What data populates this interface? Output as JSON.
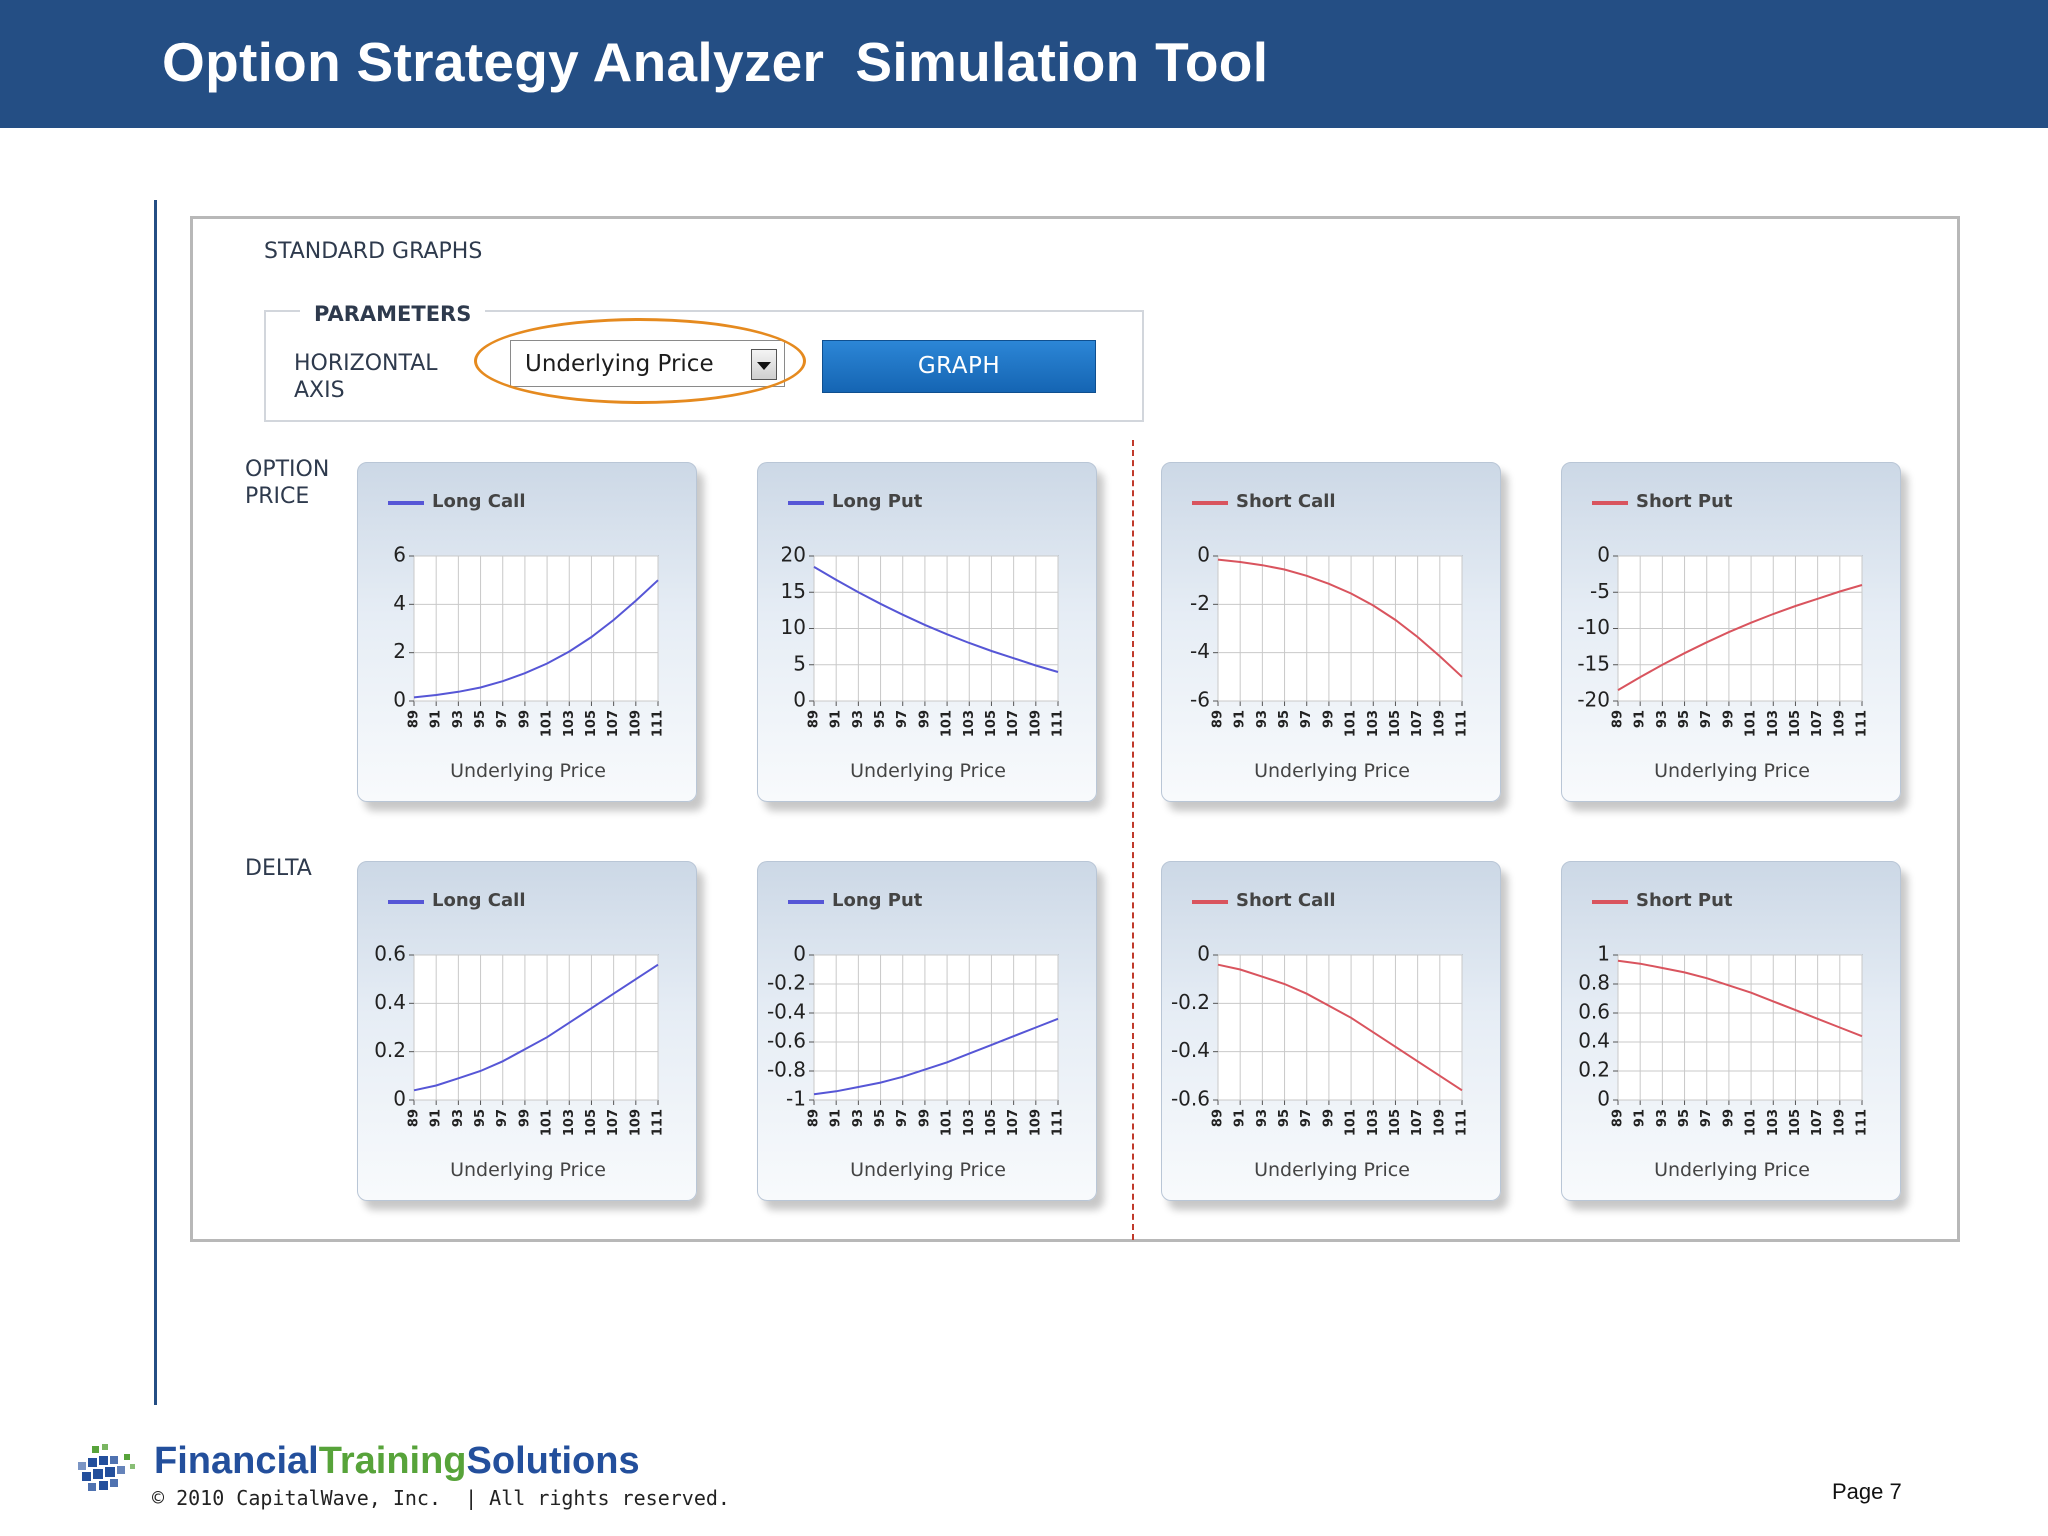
{
  "slide": {
    "title": "Option Strategy Analyzer  Simulation Tool",
    "page": "Page 7"
  },
  "app": {
    "section_title": "STANDARD GRAPHS",
    "parameters_legend": "PARAMETERS",
    "horizontal_axis_label": "HORIZONTAL\nAXIS",
    "horizontal_axis_value": "Underlying Price",
    "graph_button": "GRAPH",
    "row_labels": [
      "OPTION\nPRICE",
      "DELTA"
    ]
  },
  "footer": {
    "brand_financial": "Financial",
    "brand_training": "Training",
    "brand_solutions": "Solutions",
    "copyright": "© 2010 CapitalWave, Inc.  | All rights reserved."
  },
  "colors": {
    "banner": "#244e84",
    "long": "#5656d6",
    "short": "#d9545e",
    "brand_blue": "#234f9c",
    "brand_green": "#57a33a"
  },
  "chart_data": [
    {
      "type": "line",
      "row": "OPTION PRICE",
      "legend": "Long Call",
      "color": "long",
      "xlabel": "Underlying Price",
      "x": [
        89,
        91,
        93,
        95,
        97,
        99,
        101,
        103,
        105,
        107,
        109,
        111
      ],
      "xticks": [
        89,
        91,
        93,
        95,
        97,
        99,
        101,
        103,
        105,
        107,
        109,
        111
      ],
      "ylim": [
        0,
        6
      ],
      "yticks": [
        0,
        2,
        4,
        6
      ],
      "ytick_labels": [
        "0",
        "2",
        "4",
        "6"
      ],
      "y": [
        0.15,
        0.25,
        0.38,
        0.56,
        0.82,
        1.15,
        1.55,
        2.05,
        2.65,
        3.35,
        4.15,
        5.0
      ]
    },
    {
      "type": "line",
      "row": "OPTION PRICE",
      "legend": "Long Put",
      "color": "long",
      "xlabel": "Underlying Price",
      "x": [
        89,
        91,
        93,
        95,
        97,
        99,
        101,
        103,
        105,
        107,
        109,
        111
      ],
      "xticks": [
        89,
        91,
        93,
        95,
        97,
        99,
        101,
        103,
        105,
        107,
        109,
        111
      ],
      "ylim": [
        0,
        20
      ],
      "yticks": [
        0,
        5,
        10,
        15,
        20
      ],
      "ytick_labels": [
        "0",
        "5",
        "10",
        "15",
        "20"
      ],
      "y": [
        18.5,
        16.7,
        15.0,
        13.4,
        11.9,
        10.5,
        9.2,
        8.0,
        6.9,
        5.9,
        4.9,
        4.0
      ]
    },
    {
      "type": "line",
      "row": "OPTION PRICE",
      "legend": "Short Call",
      "color": "short",
      "xlabel": "Underlying Price",
      "x": [
        89,
        91,
        93,
        95,
        97,
        99,
        101,
        103,
        105,
        107,
        109,
        111
      ],
      "xticks": [
        89,
        91,
        93,
        95,
        97,
        99,
        101,
        103,
        105,
        107,
        109,
        111
      ],
      "ylim": [
        -6,
        0
      ],
      "yticks": [
        -6,
        -4,
        -2,
        0
      ],
      "ytick_labels": [
        "-6",
        "-4",
        "-2",
        "0"
      ],
      "y": [
        -0.15,
        -0.25,
        -0.38,
        -0.56,
        -0.82,
        -1.15,
        -1.55,
        -2.05,
        -2.65,
        -3.35,
        -4.15,
        -5.0
      ]
    },
    {
      "type": "line",
      "row": "OPTION PRICE",
      "legend": "Short Put",
      "color": "short",
      "xlabel": "Underlying Price",
      "x": [
        89,
        91,
        93,
        95,
        97,
        99,
        101,
        103,
        105,
        107,
        109,
        111
      ],
      "xticks": [
        89,
        91,
        93,
        95,
        97,
        99,
        101,
        103,
        105,
        107,
        109,
        111
      ],
      "ylim": [
        -20,
        0
      ],
      "yticks": [
        -20,
        -15,
        -10,
        -5,
        0
      ],
      "ytick_labels": [
        "-20",
        "-15",
        "-10",
        "-5",
        "0"
      ],
      "y": [
        -18.5,
        -16.7,
        -15.0,
        -13.4,
        -11.9,
        -10.5,
        -9.2,
        -8.0,
        -6.9,
        -5.9,
        -4.9,
        -4.0
      ]
    },
    {
      "type": "line",
      "row": "DELTA",
      "legend": "Long Call",
      "color": "long",
      "xlabel": "Underlying Price",
      "x": [
        89,
        91,
        93,
        95,
        97,
        99,
        101,
        103,
        105,
        107,
        109,
        111
      ],
      "xticks": [
        89,
        91,
        93,
        95,
        97,
        99,
        101,
        103,
        105,
        107,
        109,
        111
      ],
      "ylim": [
        0,
        0.6
      ],
      "yticks": [
        0,
        0.2,
        0.4,
        0.6
      ],
      "ytick_labels": [
        "0",
        "0.2",
        "0.4",
        "0.6"
      ],
      "y": [
        0.04,
        0.06,
        0.09,
        0.12,
        0.16,
        0.21,
        0.26,
        0.32,
        0.38,
        0.44,
        0.5,
        0.56
      ]
    },
    {
      "type": "line",
      "row": "DELTA",
      "legend": "Long Put",
      "color": "long",
      "xlabel": "Underlying Price",
      "x": [
        89,
        91,
        93,
        95,
        97,
        99,
        101,
        103,
        105,
        107,
        109,
        111
      ],
      "xticks": [
        89,
        91,
        93,
        95,
        97,
        99,
        101,
        103,
        105,
        107,
        109,
        111
      ],
      "ylim": [
        -1,
        0
      ],
      "yticks": [
        -1,
        -0.8,
        -0.6,
        -0.4,
        -0.2,
        0
      ],
      "ytick_labels": [
        "-1",
        "-0.8",
        "-0.6",
        "-0.4",
        "-0.2",
        "0"
      ],
      "y": [
        -0.96,
        -0.94,
        -0.91,
        -0.88,
        -0.84,
        -0.79,
        -0.74,
        -0.68,
        -0.62,
        -0.56,
        -0.5,
        -0.44
      ]
    },
    {
      "type": "line",
      "row": "DELTA",
      "legend": "Short Call",
      "color": "short",
      "xlabel": "Underlying Price",
      "x": [
        89,
        91,
        93,
        95,
        97,
        99,
        101,
        103,
        105,
        107,
        109,
        111
      ],
      "xticks": [
        89,
        91,
        93,
        95,
        97,
        99,
        101,
        103,
        105,
        107,
        109,
        111
      ],
      "ylim": [
        -0.6,
        0
      ],
      "yticks": [
        -0.6,
        -0.4,
        -0.2,
        0
      ],
      "ytick_labels": [
        "-0.6",
        "-0.4",
        "-0.2",
        "0"
      ],
      "y": [
        -0.04,
        -0.06,
        -0.09,
        -0.12,
        -0.16,
        -0.21,
        -0.26,
        -0.32,
        -0.38,
        -0.44,
        -0.5,
        -0.56
      ]
    },
    {
      "type": "line",
      "row": "DELTA",
      "legend": "Short Put",
      "color": "short",
      "xlabel": "Underlying Price",
      "x": [
        89,
        91,
        93,
        95,
        97,
        99,
        101,
        103,
        105,
        107,
        109,
        111
      ],
      "xticks": [
        89,
        91,
        93,
        95,
        97,
        99,
        101,
        103,
        105,
        107,
        109,
        111
      ],
      "ylim": [
        0,
        1
      ],
      "yticks": [
        0,
        0.2,
        0.4,
        0.6,
        0.8,
        1
      ],
      "ytick_labels": [
        "0",
        "0.2",
        "0.4",
        "0.6",
        "0.8",
        "1"
      ],
      "y": [
        0.96,
        0.94,
        0.91,
        0.88,
        0.84,
        0.79,
        0.74,
        0.68,
        0.62,
        0.56,
        0.5,
        0.44
      ]
    }
  ]
}
